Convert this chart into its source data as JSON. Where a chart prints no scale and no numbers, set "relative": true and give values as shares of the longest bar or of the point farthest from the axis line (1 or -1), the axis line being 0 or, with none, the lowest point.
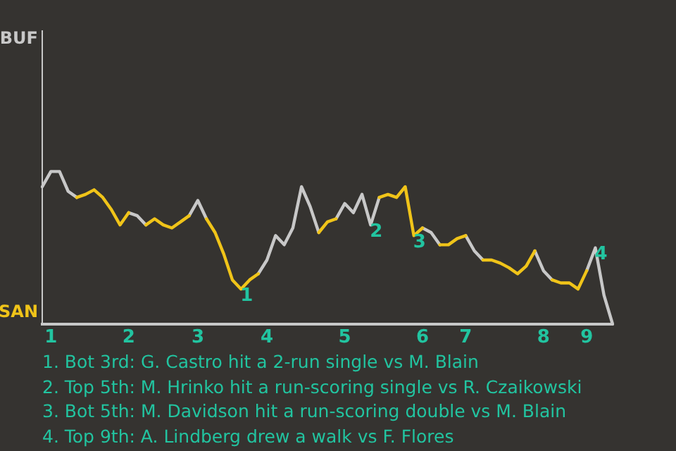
{
  "chart_data": {
    "type": "line",
    "relative": true,
    "categories": [
      null,
      "1",
      null,
      null,
      null,
      null,
      null,
      null,
      null,
      null,
      "2",
      null,
      null,
      null,
      null,
      null,
      null,
      null,
      "3",
      null,
      null,
      null,
      null,
      null,
      null,
      null,
      "4",
      null,
      null,
      null,
      null,
      null,
      null,
      null,
      null,
      "5",
      null,
      null,
      null,
      null,
      null,
      null,
      null,
      null,
      "6",
      null,
      null,
      null,
      null,
      "7",
      null,
      null,
      null,
      null,
      null,
      null,
      null,
      null,
      "8",
      null,
      null,
      null,
      null,
      "9",
      null,
      null,
      null
    ],
    "series": [
      {
        "name": "BUF",
        "color": "#c8c8c8",
        "values": [
          0.9,
          1,
          1,
          0.87,
          0.83,
          null,
          null,
          null,
          null,
          null,
          0.73,
          0.71,
          0.65,
          null,
          null,
          null,
          null,
          0.71,
          0.81,
          0.69,
          null,
          null,
          null,
          null,
          null,
          0.33,
          0.42,
          0.58,
          0.52,
          0.63,
          0.9,
          0.77,
          0.6,
          null,
          0.69,
          0.79,
          0.73,
          0.85,
          0.65,
          0.83,
          null,
          null,
          null,
          null,
          0.63,
          0.6,
          0.52,
          null,
          null,
          0.58,
          0.48,
          0.42,
          null,
          null,
          null,
          null,
          null,
          0.48,
          0.35,
          0.29,
          null,
          null,
          null,
          0.35,
          0.5,
          0.19,
          0
        ]
      },
      {
        "name": "SAN",
        "color": "#f0c419",
        "values": [
          null,
          null,
          null,
          null,
          0.83,
          0.85,
          0.88,
          0.83,
          0.75,
          0.65,
          0.73,
          null,
          0.65,
          0.69,
          0.65,
          0.63,
          0.67,
          0.71,
          null,
          0.69,
          0.6,
          0.46,
          0.29,
          0.23,
          0.29,
          0.33,
          null,
          null,
          null,
          null,
          null,
          null,
          0.6,
          0.67,
          0.69,
          null,
          null,
          null,
          null,
          0.83,
          0.85,
          0.83,
          0.9,
          0.58,
          0.63,
          null,
          0.52,
          0.52,
          0.56,
          0.58,
          null,
          0.42,
          0.42,
          0.4,
          0.37,
          0.33,
          0.38,
          0.48,
          null,
          0.29,
          0.27,
          0.27,
          0.23,
          0.35,
          null,
          null,
          null
        ]
      }
    ],
    "annotations": [
      {
        "text": "1",
        "y": 0.23
      },
      {
        "text": "2",
        "y": 0.65
      },
      {
        "text": "3",
        "y": 0.58
      },
      {
        "text": "4",
        "y": 0.5
      },
      "1. Bot 3rd: G. Castro hit a 2-run single vs M. Blain",
      "2. Top 5th: M. Hrinko hit a run-scoring single vs R. Czaikowski",
      "3. Bot 5th: M. Davidson hit a run-scoring double vs M. Blain",
      "4. Top 9th: A. Lindberg drew a walk vs F. Flores"
    ]
  }
}
